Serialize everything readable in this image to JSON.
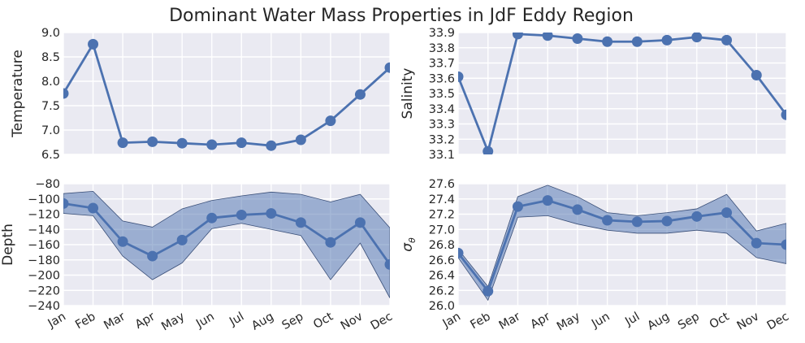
{
  "figure": {
    "title": "Dominant Water Mass Properties in JdF Eddy Region"
  },
  "colors": {
    "line": "#4c72b0",
    "band": "#4c72b0",
    "panel_bg": "#eaeaf2",
    "grid": "#ffffff"
  },
  "chart_data": [
    {
      "type": "line",
      "ylabel": "Temperature",
      "categories": [
        "Jan",
        "Feb",
        "Mar",
        "Apr",
        "May",
        "Jun",
        "Jul",
        "Aug",
        "Sep",
        "Oct",
        "Nov",
        "Dec"
      ],
      "values": [
        7.75,
        8.76,
        6.74,
        6.76,
        6.73,
        6.7,
        6.74,
        6.68,
        6.8,
        7.19,
        7.73,
        8.28
      ],
      "ylim": [
        6.5,
        9.0
      ],
      "yticks": [
        "6.5",
        "7.0",
        "7.5",
        "8.0",
        "8.5",
        "9.0"
      ],
      "show_xticks": false
    },
    {
      "type": "line",
      "ylabel": "Salinity",
      "categories": [
        "Jan",
        "Feb",
        "Mar",
        "Apr",
        "May",
        "Jun",
        "Jul",
        "Aug",
        "Sep",
        "Oct",
        "Nov",
        "Dec"
      ],
      "values": [
        33.61,
        33.12,
        33.89,
        33.88,
        33.86,
        33.84,
        33.84,
        33.85,
        33.87,
        33.85,
        33.62,
        33.36
      ],
      "ylim": [
        33.1,
        33.9
      ],
      "yticks": [
        "33.1",
        "33.2",
        "33.3",
        "33.4",
        "33.5",
        "33.6",
        "33.7",
        "33.8",
        "33.9"
      ],
      "show_xticks": false
    },
    {
      "type": "line",
      "ylabel": "Depth",
      "categories": [
        "Jan",
        "Feb",
        "Mar",
        "Apr",
        "May",
        "Jun",
        "Jul",
        "Aug",
        "Sep",
        "Oct",
        "Nov",
        "Dec"
      ],
      "values": [
        -106,
        -112,
        -156,
        -175,
        -154,
        -125,
        -121,
        -119,
        -131,
        -157,
        -131,
        -186
      ],
      "upper": [
        -93,
        -90,
        -129,
        -137,
        -113,
        -102,
        -96,
        -91,
        -94,
        -104,
        -94,
        -138
      ],
      "lower": [
        -119,
        -122,
        -175,
        -206,
        -184,
        -139,
        -132,
        -140,
        -148,
        -206,
        -158,
        -230
      ],
      "ylim": [
        -240,
        -80
      ],
      "yticks": [
        "−240",
        "−220",
        "−200",
        "−180",
        "−160",
        "−140",
        "−120",
        "−100",
        "−80"
      ],
      "show_xticks": true
    },
    {
      "type": "line",
      "ylabel": "σθ",
      "ylabel_main": "σ",
      "ylabel_sub": "θ",
      "categories": [
        "Jan",
        "Feb",
        "Mar",
        "Apr",
        "May",
        "Jun",
        "Jul",
        "Aug",
        "Sep",
        "Oct",
        "Nov",
        "Dec"
      ],
      "values": [
        26.69,
        26.19,
        27.3,
        27.38,
        27.26,
        27.12,
        27.1,
        27.11,
        27.17,
        27.22,
        26.82,
        26.8
      ],
      "upper": [
        26.74,
        26.25,
        27.43,
        27.58,
        27.43,
        27.22,
        27.18,
        27.22,
        27.27,
        27.46,
        26.98,
        27.08
      ],
      "lower": [
        26.63,
        26.07,
        27.16,
        27.18,
        27.07,
        26.99,
        26.95,
        26.95,
        26.99,
        26.95,
        26.63,
        26.55
      ],
      "ylim": [
        26.0,
        27.6
      ],
      "yticks": [
        "26.0",
        "26.2",
        "26.4",
        "26.6",
        "26.8",
        "27.0",
        "27.2",
        "27.4",
        "27.6"
      ],
      "show_xticks": true
    }
  ]
}
